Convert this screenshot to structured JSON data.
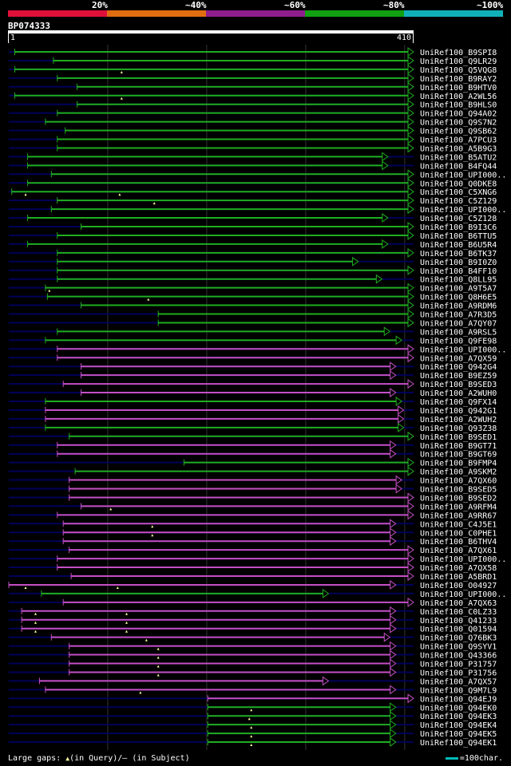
{
  "legend": {
    "segments": [
      {
        "label": "",
        "color": "#e0103a"
      },
      {
        "label": "20%",
        "color": "#e06d10"
      },
      {
        "label": "~40%",
        "color": "#8e1d8e"
      },
      {
        "label": "~60%",
        "color": "#11a011"
      },
      {
        "label": "~80%",
        "color": "#10b0b8"
      },
      {
        "label": "~100%",
        "color": ""
      }
    ]
  },
  "query": {
    "id": "BP074333",
    "start_label": "1",
    "end_label": "410",
    "length": 410
  },
  "colors": {
    "green": "#1fae1f",
    "magenta": "#c54fc5",
    "navy": "#00005a",
    "grid": "#333333",
    "gap_marker": "#ffffa0"
  },
  "hits": [
    {
      "label": "UniRef100_B9SPI8",
      "start": 7,
      "end": 410,
      "color": "green",
      "arrow": true,
      "gap_q": []
    },
    {
      "label": "UniRef100_Q9LR29",
      "start": 46,
      "end": 410,
      "color": "green",
      "arrow": true,
      "gap_q": []
    },
    {
      "label": "UniRef100_Q5VQG8",
      "start": 7,
      "end": 410,
      "color": "green",
      "arrow": true,
      "gap_q": [
        115
      ]
    },
    {
      "label": "UniRef100_B9RAY2",
      "start": 50,
      "end": 410,
      "color": "green",
      "arrow": true,
      "gap_q": []
    },
    {
      "label": "UniRef100_B9HTV0",
      "start": 70,
      "end": 410,
      "color": "green",
      "arrow": true,
      "gap_q": []
    },
    {
      "label": "UniRef100_A2WL56",
      "start": 7,
      "end": 410,
      "color": "green",
      "arrow": true,
      "gap_q": [
        115
      ]
    },
    {
      "label": "UniRef100_B9HLS0",
      "start": 70,
      "end": 410,
      "color": "green",
      "arrow": true,
      "gap_q": []
    },
    {
      "label": "UniRef100_Q94A02",
      "start": 50,
      "end": 410,
      "color": "green",
      "arrow": true,
      "gap_q": []
    },
    {
      "label": "UniRef100_Q9S7N2",
      "start": 38,
      "end": 410,
      "color": "green",
      "arrow": true,
      "gap_q": []
    },
    {
      "label": "UniRef100_Q9SB62",
      "start": 58,
      "end": 410,
      "color": "green",
      "arrow": true,
      "gap_q": []
    },
    {
      "label": "UniRef100_A7PCU3",
      "start": 50,
      "end": 410,
      "color": "green",
      "arrow": true,
      "gap_q": []
    },
    {
      "label": "UniRef100_A5B9G3",
      "start": 50,
      "end": 410,
      "color": "green",
      "arrow": true,
      "gap_q": []
    },
    {
      "label": "UniRef100_B5ATU2",
      "start": 20,
      "end": 384,
      "color": "green",
      "arrow": true,
      "gap_q": []
    },
    {
      "label": "UniRef100_B4FQ44",
      "start": 20,
      "end": 384,
      "color": "green",
      "arrow": true,
      "gap_q": []
    },
    {
      "label": "UniRef100_UPI000..",
      "start": 44,
      "end": 410,
      "color": "green",
      "arrow": true,
      "gap_q": []
    },
    {
      "label": "UniRef100_Q0DKE8",
      "start": 20,
      "end": 410,
      "color": "green",
      "arrow": true,
      "gap_q": []
    },
    {
      "label": "UniRef100_C5XNG6",
      "start": 4,
      "end": 410,
      "color": "green",
      "arrow": true,
      "gap_q": [
        18,
        113
      ]
    },
    {
      "label": "UniRef100_C5Z129",
      "start": 50,
      "end": 410,
      "color": "green",
      "arrow": true,
      "gap_q": [
        148
      ]
    },
    {
      "label": "UniRef100_UPI000..",
      "start": 44,
      "end": 410,
      "color": "green",
      "arrow": true,
      "gap_q": []
    },
    {
      "label": "UniRef100_C5Z128",
      "start": 20,
      "end": 384,
      "color": "green",
      "arrow": true,
      "gap_q": []
    },
    {
      "label": "UniRef100_B9I3C6",
      "start": 74,
      "end": 410,
      "color": "green",
      "arrow": true,
      "gap_q": []
    },
    {
      "label": "UniRef100_B6TTU5",
      "start": 50,
      "end": 410,
      "color": "green",
      "arrow": true,
      "gap_q": []
    },
    {
      "label": "UniRef100_B6U5R4",
      "start": 20,
      "end": 384,
      "color": "green",
      "arrow": true,
      "gap_q": []
    },
    {
      "label": "UniRef100_B6TK37",
      "start": 50,
      "end": 410,
      "color": "green",
      "arrow": true,
      "gap_q": []
    },
    {
      "label": "UniRef100_B9I0Z0",
      "start": 50,
      "end": 354,
      "color": "green",
      "arrow": true,
      "gap_q": []
    },
    {
      "label": "UniRef100_B4FF10",
      "start": 50,
      "end": 410,
      "color": "green",
      "arrow": true,
      "gap_q": []
    },
    {
      "label": "UniRef100_Q8LL95",
      "start": 50,
      "end": 378,
      "color": "green",
      "arrow": true,
      "gap_q": []
    },
    {
      "label": "UniRef100_A9T5A7",
      "start": 38,
      "end": 410,
      "color": "green",
      "arrow": true,
      "gap_q": [
        42
      ]
    },
    {
      "label": "UniRef100_Q8H6E5",
      "start": 40,
      "end": 410,
      "color": "green",
      "arrow": true,
      "gap_q": [
        142
      ]
    },
    {
      "label": "UniRef100_A9RDM6",
      "start": 74,
      "end": 410,
      "color": "green",
      "arrow": true,
      "gap_q": []
    },
    {
      "label": "UniRef100_A7R3D5",
      "start": 152,
      "end": 410,
      "color": "green",
      "arrow": true,
      "gap_q": []
    },
    {
      "label": "UniRef100_A7QY07",
      "start": 152,
      "end": 410,
      "color": "green",
      "arrow": true,
      "gap_q": []
    },
    {
      "label": "UniRef100_A9RSL5",
      "start": 50,
      "end": 386,
      "color": "green",
      "arrow": true,
      "gap_q": []
    },
    {
      "label": "UniRef100_Q9FE98",
      "start": 38,
      "end": 398,
      "color": "green",
      "arrow": true,
      "gap_q": []
    },
    {
      "label": "UniRef100_UPI000..",
      "start": 50,
      "end": 410,
      "color": "magenta",
      "arrow": true,
      "gap_q": []
    },
    {
      "label": "UniRef100_A7QX59",
      "start": 50,
      "end": 410,
      "color": "magenta",
      "arrow": true,
      "gap_q": []
    },
    {
      "label": "UniRef100_Q942G4",
      "start": 74,
      "end": 392,
      "color": "magenta",
      "arrow": true,
      "gap_q": []
    },
    {
      "label": "UniRef100_B9EZ59",
      "start": 74,
      "end": 392,
      "color": "magenta",
      "arrow": true,
      "gap_q": []
    },
    {
      "label": "UniRef100_B9SED3",
      "start": 56,
      "end": 410,
      "color": "magenta",
      "arrow": true,
      "gap_q": []
    },
    {
      "label": "UniRef100_A2WUH0",
      "start": 74,
      "end": 392,
      "color": "magenta",
      "arrow": true,
      "gap_q": []
    },
    {
      "label": "UniRef100_Q9FX14",
      "start": 38,
      "end": 398,
      "color": "green",
      "arrow": true,
      "gap_q": []
    },
    {
      "label": "UniRef100_Q942G1",
      "start": 38,
      "end": 400,
      "color": "magenta",
      "arrow": true,
      "gap_q": []
    },
    {
      "label": "UniRef100_A2WUH2",
      "start": 38,
      "end": 400,
      "color": "magenta",
      "arrow": true,
      "gap_q": []
    },
    {
      "label": "UniRef100_Q93Z38",
      "start": 38,
      "end": 400,
      "color": "green",
      "arrow": true,
      "gap_q": []
    },
    {
      "label": "UniRef100_B9SED1",
      "start": 62,
      "end": 410,
      "color": "green",
      "arrow": true,
      "gap_q": []
    },
    {
      "label": "UniRef100_B9GT71",
      "start": 50,
      "end": 392,
      "color": "magenta",
      "arrow": true,
      "gap_q": []
    },
    {
      "label": "UniRef100_B9GT69",
      "start": 50,
      "end": 392,
      "color": "magenta",
      "arrow": true,
      "gap_q": []
    },
    {
      "label": "UniRef100_B9FMP4",
      "start": 178,
      "end": 410,
      "color": "green",
      "arrow": true,
      "gap_q": []
    },
    {
      "label": "UniRef100_A9SKM2",
      "start": 68,
      "end": 410,
      "color": "green",
      "arrow": true,
      "gap_q": []
    },
    {
      "label": "UniRef100_A7QX60",
      "start": 62,
      "end": 398,
      "color": "magenta",
      "arrow": true,
      "gap_q": []
    },
    {
      "label": "UniRef100_B9SED5",
      "start": 62,
      "end": 398,
      "color": "magenta",
      "arrow": true,
      "gap_q": []
    },
    {
      "label": "UniRef100_B9SED2",
      "start": 62,
      "end": 410,
      "color": "magenta",
      "arrow": true,
      "gap_q": []
    },
    {
      "label": "UniRef100_A9RFM4",
      "start": 74,
      "end": 410,
      "color": "magenta",
      "arrow": true,
      "gap_q": [
        104
      ]
    },
    {
      "label": "UniRef100_A9RR67",
      "start": 50,
      "end": 410,
      "color": "magenta",
      "arrow": true,
      "gap_q": []
    },
    {
      "label": "UniRef100_C4J5E1",
      "start": 56,
      "end": 392,
      "color": "magenta",
      "arrow": true,
      "gap_q": [
        146
      ]
    },
    {
      "label": "UniRef100_C0PHE1",
      "start": 56,
      "end": 392,
      "color": "magenta",
      "arrow": true,
      "gap_q": [
        146
      ]
    },
    {
      "label": "UniRef100_B6THV4",
      "start": 56,
      "end": 392,
      "color": "magenta",
      "arrow": true,
      "gap_q": []
    },
    {
      "label": "UniRef100_A7QX61",
      "start": 62,
      "end": 410,
      "color": "magenta",
      "arrow": true,
      "gap_q": []
    },
    {
      "label": "UniRef100_UPI000..",
      "start": 50,
      "end": 410,
      "color": "magenta",
      "arrow": true,
      "gap_q": []
    },
    {
      "label": "UniRef100_A7QX58",
      "start": 50,
      "end": 410,
      "color": "magenta",
      "arrow": true,
      "gap_q": []
    },
    {
      "label": "UniRef100_A5BRD1",
      "start": 64,
      "end": 410,
      "color": "magenta",
      "arrow": true,
      "gap_q": []
    },
    {
      "label": "UniRef100_O04927",
      "start": 1,
      "end": 392,
      "color": "magenta",
      "arrow": true,
      "gap_q": [
        18,
        111
      ]
    },
    {
      "label": "UniRef100_UPI000..",
      "start": 34,
      "end": 324,
      "color": "green",
      "arrow": true,
      "gap_q": []
    },
    {
      "label": "UniRef100_A7QX63",
      "start": 56,
      "end": 410,
      "color": "magenta",
      "arrow": true,
      "gap_q": []
    },
    {
      "label": "UniRef100_C0LZ33",
      "start": 14,
      "end": 392,
      "color": "magenta",
      "arrow": true,
      "gap_q": [
        28,
        120
      ]
    },
    {
      "label": "UniRef100_Q41233",
      "start": 14,
      "end": 392,
      "color": "magenta",
      "arrow": true,
      "gap_q": [
        28,
        120
      ]
    },
    {
      "label": "UniRef100_Q01594",
      "start": 14,
      "end": 392,
      "color": "magenta",
      "arrow": true,
      "gap_q": [
        28,
        120
      ]
    },
    {
      "label": "UniRef100_Q76BK3",
      "start": 44,
      "end": 386,
      "color": "magenta",
      "arrow": true,
      "gap_q": [
        140
      ]
    },
    {
      "label": "UniRef100_Q9SYV1",
      "start": 62,
      "end": 392,
      "color": "magenta",
      "arrow": true,
      "gap_q": [
        152
      ]
    },
    {
      "label": "UniRef100_Q43366",
      "start": 62,
      "end": 392,
      "color": "magenta",
      "arrow": true,
      "gap_q": [
        152
      ]
    },
    {
      "label": "UniRef100_P31757",
      "start": 62,
      "end": 392,
      "color": "magenta",
      "arrow": true,
      "gap_q": [
        152
      ]
    },
    {
      "label": "UniRef100_P31756",
      "start": 62,
      "end": 392,
      "color": "magenta",
      "arrow": true,
      "gap_q": [
        152
      ]
    },
    {
      "label": "UniRef100_A7QX57",
      "start": 32,
      "end": 324,
      "color": "magenta",
      "arrow": true,
      "gap_q": []
    },
    {
      "label": "UniRef100_Q9M7L9",
      "start": 38,
      "end": 392,
      "color": "magenta",
      "arrow": true,
      "gap_q": [
        134
      ]
    },
    {
      "label": "UniRef100_Q94EJ9",
      "start": 202,
      "end": 410,
      "color": "magenta",
      "arrow": true,
      "gap_q": []
    },
    {
      "label": "UniRef100_Q94EK0",
      "start": 202,
      "end": 392,
      "color": "green",
      "arrow": true,
      "gap_q": [
        246
      ]
    },
    {
      "label": "UniRef100_Q94EK3",
      "start": 202,
      "end": 392,
      "color": "green",
      "arrow": true,
      "gap_q": [
        244
      ]
    },
    {
      "label": "UniRef100_Q94EK4",
      "start": 202,
      "end": 392,
      "color": "green",
      "arrow": true,
      "gap_q": [
        246
      ]
    },
    {
      "label": "UniRef100_Q94EK5",
      "start": 202,
      "end": 392,
      "color": "green",
      "arrow": true,
      "gap_q": [
        246
      ]
    },
    {
      "label": "UniRef100_Q94EK1",
      "start": 202,
      "end": 392,
      "color": "green",
      "arrow": true,
      "gap_q": [
        246
      ]
    }
  ],
  "footer": {
    "gaps_prefix": "Large gaps: ",
    "gaps_marker": "▲",
    "gaps_text": "(in Query)/– (in Subject)",
    "scale_text": "=100char."
  }
}
